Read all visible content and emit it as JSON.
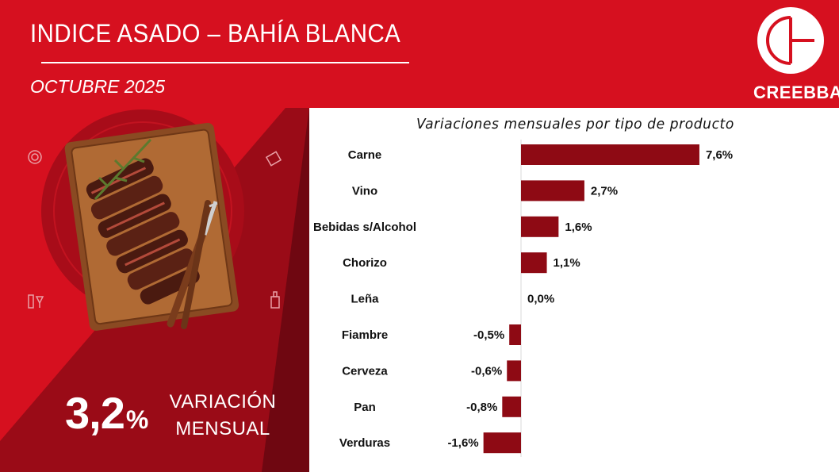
{
  "header": {
    "title": "INDICE ASADO – BAHÍA BLANCA",
    "subtitle": "OCTUBRE 2025"
  },
  "brand": {
    "logo_text": "CREEBBA",
    "primary_color": "#d6101f",
    "dark_color": "#8b0a14",
    "bar_color": "#8e0a14"
  },
  "kpi": {
    "value": "3,2",
    "unit": "%",
    "label_line1": "VARIACIÓN",
    "label_line2": "MENSUAL"
  },
  "illustration": {
    "icons": [
      "plate-icon",
      "grill-icon",
      "wine-icon",
      "bottle-icon"
    ]
  },
  "chart_data": {
    "type": "bar",
    "orientation": "horizontal",
    "title": "Variaciones mensuales por tipo de producto",
    "categories": [
      "Carne",
      "Vino",
      "Bebidas s/Alcohol",
      "Chorizo",
      "Leña",
      "Fiambre",
      "Cerveza",
      "Pan",
      "Verduras"
    ],
    "values": [
      7.6,
      2.7,
      1.6,
      1.1,
      0.0,
      -0.5,
      -0.6,
      -0.8,
      -1.6
    ],
    "labels": [
      "7,6%",
      "2,7%",
      "1,6%",
      "1,1%",
      "0,0%",
      "-0,5%",
      "-0,6%",
      "-0,8%",
      "-1,6%"
    ],
    "xlim": [
      -1.6,
      7.6
    ],
    "grid": false,
    "legend": "none"
  }
}
